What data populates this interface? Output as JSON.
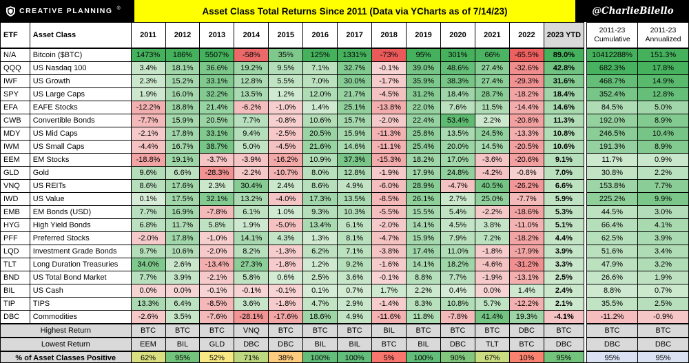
{
  "header": {
    "brand": "CREATIVE PLANNING",
    "brand_reg": "®",
    "title": "Asset Class Total Returns Since 2011 (Data via YCharts as of 7/14/23)",
    "handle": "@CharlieBilello"
  },
  "colors": {
    "bar_bg": "#000000",
    "title_bg": "#FFFF00",
    "positive_pale": "#D9EDD8",
    "positive_strong": "#45B15D",
    "negative_pale": "#F7D4D4",
    "negative_strong": "#EB5A5A",
    "scale_low": "#F8696B",
    "scale_mid": "#FFEB84",
    "scale_high": "#63BE7B",
    "header_gray": "#D9D9D9",
    "footer_blue": "#D9E1F2"
  },
  "chart_data": {
    "type": "table",
    "title": "Asset Class Total Returns Since 2011 (Data via YCharts as of 7/14/23)",
    "columns": [
      "ETF",
      "Asset Class",
      "2011",
      "2012",
      "2013",
      "2014",
      "2015",
      "2016",
      "2017",
      "2018",
      "2019",
      "2020",
      "2021",
      "2022",
      "2023 YTD",
      "2011-23 Cumulative",
      "2011-23 Annualized"
    ],
    "rows": [
      {
        "etf": "N/A",
        "name": "Bitcoin ($BTC)",
        "values": [
          "1473%",
          "186%",
          "5507%",
          "-58%",
          "35%",
          "125%",
          "1331%",
          "-73%",
          "95%",
          "301%",
          "66%",
          "-65.5%",
          "89.0%"
        ],
        "cumulative": "10412288%",
        "annualized": "151.3%"
      },
      {
        "etf": "QQQ",
        "name": "US Nasdaq 100",
        "values": [
          "3.4%",
          "18.1%",
          "36.6%",
          "19.2%",
          "9.5%",
          "7.1%",
          "32.7%",
          "-0.1%",
          "39.0%",
          "48.6%",
          "27.4%",
          "-32.6%",
          "42.8%"
        ],
        "cumulative": "682.3%",
        "annualized": "17.8%"
      },
      {
        "etf": "IWF",
        "name": "US Growth",
        "values": [
          "2.3%",
          "15.2%",
          "33.1%",
          "12.8%",
          "5.5%",
          "7.0%",
          "30.0%",
          "-1.7%",
          "35.9%",
          "38.3%",
          "27.4%",
          "-29.3%",
          "31.6%"
        ],
        "cumulative": "468.7%",
        "annualized": "14.9%"
      },
      {
        "etf": "SPY",
        "name": "US Large Caps",
        "values": [
          "1.9%",
          "16.0%",
          "32.2%",
          "13.5%",
          "1.2%",
          "12.0%",
          "21.7%",
          "-4.5%",
          "31.2%",
          "18.4%",
          "28.7%",
          "-18.2%",
          "18.4%"
        ],
        "cumulative": "352.4%",
        "annualized": "12.8%"
      },
      {
        "etf": "EFA",
        "name": "EAFE Stocks",
        "values": [
          "-12.2%",
          "18.8%",
          "21.4%",
          "-6.2%",
          "-1.0%",
          "1.4%",
          "25.1%",
          "-13.8%",
          "22.0%",
          "7.6%",
          "11.5%",
          "-14.4%",
          "14.6%"
        ],
        "cumulative": "84.5%",
        "annualized": "5.0%"
      },
      {
        "etf": "CWB",
        "name": "Convertible Bonds",
        "values": [
          "-7.7%",
          "15.9%",
          "20.5%",
          "7.7%",
          "-0.8%",
          "10.6%",
          "15.7%",
          "-2.0%",
          "22.4%",
          "53.4%",
          "2.2%",
          "-20.8%",
          "11.3%"
        ],
        "cumulative": "192.0%",
        "annualized": "8.9%"
      },
      {
        "etf": "MDY",
        "name": "US Mid Caps",
        "values": [
          "-2.1%",
          "17.8%",
          "33.1%",
          "9.4%",
          "-2.5%",
          "20.5%",
          "15.9%",
          "-11.3%",
          "25.8%",
          "13.5%",
          "24.5%",
          "-13.3%",
          "10.8%"
        ],
        "cumulative": "246.5%",
        "annualized": "10.4%"
      },
      {
        "etf": "IWM",
        "name": "US Small Caps",
        "values": [
          "-4.4%",
          "16.7%",
          "38.7%",
          "5.0%",
          "-4.5%",
          "21.6%",
          "14.6%",
          "-11.1%",
          "25.4%",
          "20.0%",
          "14.5%",
          "-20.5%",
          "10.6%"
        ],
        "cumulative": "191.3%",
        "annualized": "8.9%"
      },
      {
        "etf": "EEM",
        "name": "EM Stocks",
        "values": [
          "-18.8%",
          "19.1%",
          "-3.7%",
          "-3.9%",
          "-16.2%",
          "10.9%",
          "37.3%",
          "-15.3%",
          "18.2%",
          "17.0%",
          "-3.6%",
          "-20.6%",
          "9.1%"
        ],
        "cumulative": "11.7%",
        "annualized": "0.9%"
      },
      {
        "etf": "GLD",
        "name": "Gold",
        "values": [
          "9.6%",
          "6.6%",
          "-28.3%",
          "-2.2%",
          "-10.7%",
          "8.0%",
          "12.8%",
          "-1.9%",
          "17.9%",
          "24.8%",
          "-4.2%",
          "-0.8%",
          "7.0%"
        ],
        "cumulative": "30.8%",
        "annualized": "2.2%"
      },
      {
        "etf": "VNQ",
        "name": "US REITs",
        "values": [
          "8.6%",
          "17.6%",
          "2.3%",
          "30.4%",
          "2.4%",
          "8.6%",
          "4.9%",
          "-6.0%",
          "28.9%",
          "-4.7%",
          "40.5%",
          "-26.2%",
          "6.6%"
        ],
        "cumulative": "153.8%",
        "annualized": "7.7%"
      },
      {
        "etf": "IWD",
        "name": "US Value",
        "values": [
          "0.1%",
          "17.5%",
          "32.1%",
          "13.2%",
          "-4.0%",
          "17.3%",
          "13.5%",
          "-8.5%",
          "26.1%",
          "2.7%",
          "25.0%",
          "-7.7%",
          "5.9%"
        ],
        "cumulative": "225.2%",
        "annualized": "9.9%"
      },
      {
        "etf": "EMB",
        "name": "EM Bonds (USD)",
        "values": [
          "7.7%",
          "16.9%",
          "-7.8%",
          "6.1%",
          "1.0%",
          "9.3%",
          "10.3%",
          "-5.5%",
          "15.5%",
          "5.4%",
          "-2.2%",
          "-18.6%",
          "5.3%"
        ],
        "cumulative": "44.5%",
        "annualized": "3.0%"
      },
      {
        "etf": "HYG",
        "name": "High Yield Bonds",
        "values": [
          "6.8%",
          "11.7%",
          "5.8%",
          "1.9%",
          "-5.0%",
          "13.4%",
          "6.1%",
          "-2.0%",
          "14.1%",
          "4.5%",
          "3.8%",
          "-11.0%",
          "5.1%"
        ],
        "cumulative": "66.4%",
        "annualized": "4.1%"
      },
      {
        "etf": "PFF",
        "name": "Preferred Stocks",
        "values": [
          "-2.0%",
          "17.8%",
          "-1.0%",
          "14.1%",
          "4.3%",
          "1.3%",
          "8.1%",
          "-4.7%",
          "15.9%",
          "7.9%",
          "7.2%",
          "-18.2%",
          "4.4%"
        ],
        "cumulative": "62.5%",
        "annualized": "3.9%"
      },
      {
        "etf": "LQD",
        "name": "Investment Grade Bonds",
        "values": [
          "9.7%",
          "10.6%",
          "-2.0%",
          "8.2%",
          "-1.3%",
          "6.2%",
          "7.1%",
          "-3.8%",
          "17.4%",
          "11.0%",
          "-1.8%",
          "-17.9%",
          "3.9%"
        ],
        "cumulative": "51.6%",
        "annualized": "3.4%"
      },
      {
        "etf": "TLT",
        "name": "Long Duration Treasuries",
        "values": [
          "34.0%",
          "2.6%",
          "-13.4%",
          "27.3%",
          "-1.8%",
          "1.2%",
          "9.2%",
          "-1.6%",
          "14.1%",
          "18.2%",
          "-4.6%",
          "-31.2%",
          "3.3%"
        ],
        "cumulative": "47.9%",
        "annualized": "3.2%"
      },
      {
        "etf": "BND",
        "name": "US Total Bond Market",
        "values": [
          "7.7%",
          "3.9%",
          "-2.1%",
          "5.8%",
          "0.6%",
          "2.5%",
          "3.6%",
          "-0.1%",
          "8.8%",
          "7.7%",
          "-1.9%",
          "-13.1%",
          "2.5%"
        ],
        "cumulative": "26.6%",
        "annualized": "1.9%"
      },
      {
        "etf": "BIL",
        "name": "US Cash",
        "values": [
          "0.0%",
          "0.0%",
          "-0.1%",
          "-0.1%",
          "-0.1%",
          "0.1%",
          "0.7%",
          "1.7%",
          "2.2%",
          "0.4%",
          "0.0%",
          "1.4%",
          "2.4%"
        ],
        "cumulative": "8.8%",
        "annualized": "0.7%"
      },
      {
        "etf": "TIP",
        "name": "TIPS",
        "values": [
          "13.3%",
          "6.4%",
          "-8.5%",
          "3.6%",
          "-1.8%",
          "4.7%",
          "2.9%",
          "-1.4%",
          "8.3%",
          "10.8%",
          "5.7%",
          "-12.2%",
          "2.1%"
        ],
        "cumulative": "35.5%",
        "annualized": "2.5%"
      },
      {
        "etf": "DBC",
        "name": "Commodities",
        "values": [
          "-2.6%",
          "3.5%",
          "-7.6%",
          "-28.1%",
          "-17.6%",
          "18.6%",
          "4.9%",
          "-11.6%",
          "11.8%",
          "-7.8%",
          "41.4%",
          "19.3%",
          "-4.1%"
        ],
        "cumulative": "-11.2%",
        "annualized": "-0.9%"
      }
    ],
    "footer_rows": [
      {
        "key": "highest-return",
        "label": "Highest Return",
        "style": "gray",
        "values": [
          "BTC",
          "BTC",
          "BTC",
          "VNQ",
          "BTC",
          "BTC",
          "BTC",
          "BIL",
          "BTC",
          "BTC",
          "BTC",
          "DBC",
          "BTC"
        ],
        "cumulative": "BTC",
        "annualized": "BTC"
      },
      {
        "key": "lowest-return",
        "label": "Lowest Return",
        "style": "gray",
        "values": [
          "EEM",
          "BIL",
          "GLD",
          "DBC",
          "DBC",
          "BIL",
          "BIL",
          "BTC",
          "BIL",
          "DBC",
          "TLT",
          "BTC",
          "DBC"
        ],
        "cumulative": "DBC",
        "annualized": "DBC"
      },
      {
        "key": "pct-positive",
        "label": "% of Asset Classes Positive",
        "style": "scale",
        "values": [
          "62%",
          "95%",
          "52%",
          "71%",
          "38%",
          "100%",
          "100%",
          "5%",
          "100%",
          "90%",
          "67%",
          "10%",
          "95%"
        ],
        "cumulative": "95%",
        "annualized": "95%"
      }
    ]
  }
}
